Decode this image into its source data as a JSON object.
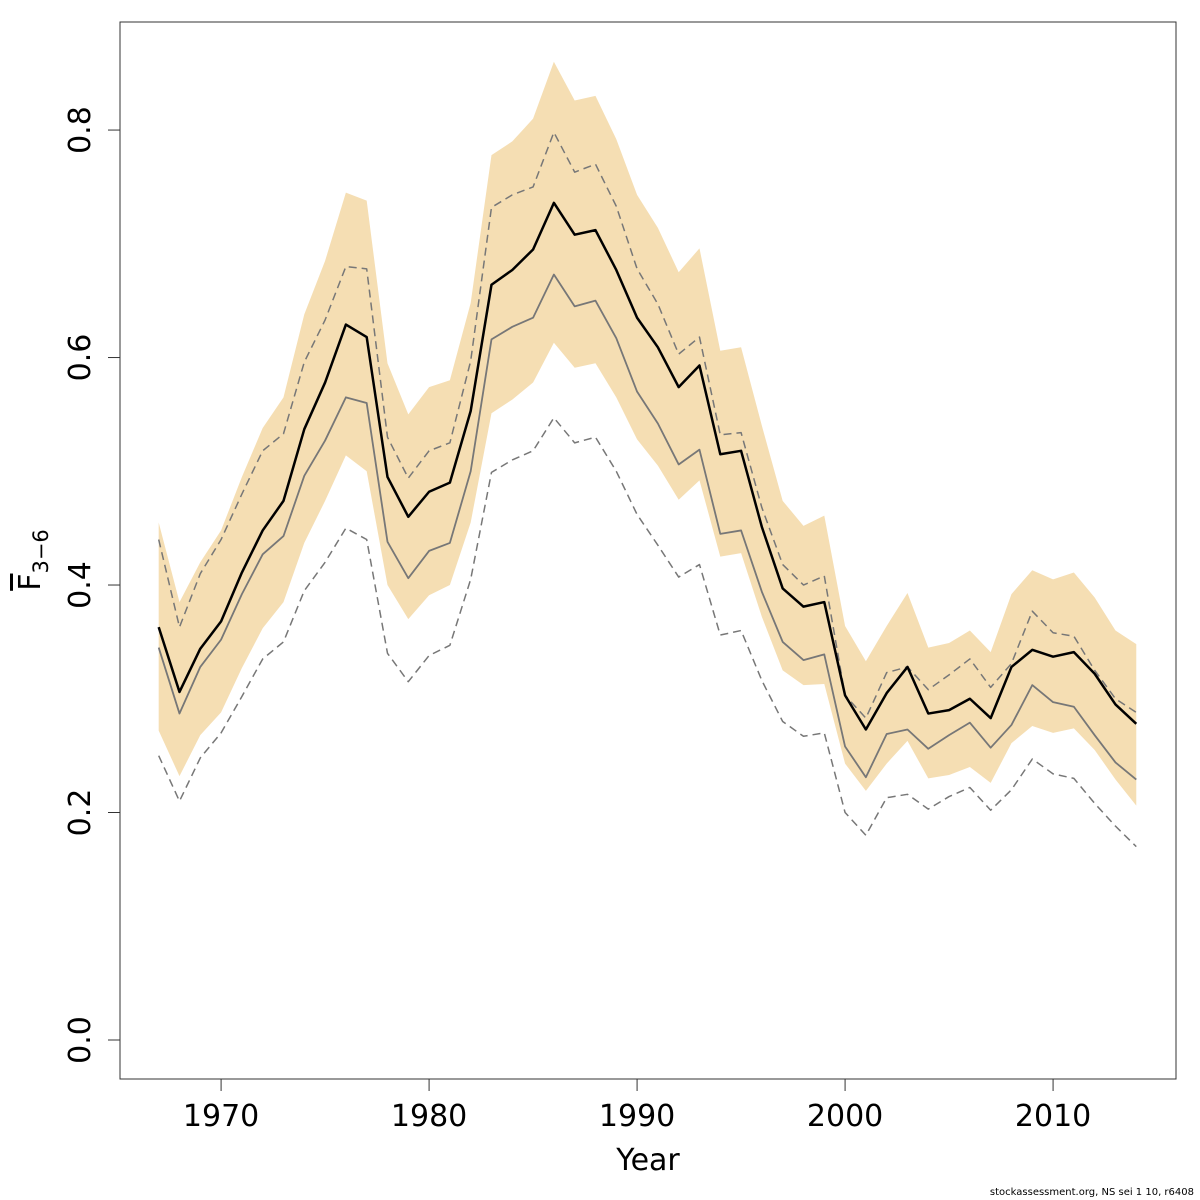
{
  "chart_data": {
    "type": "line",
    "x_label": "Year",
    "y_label": {
      "main": "F",
      "sub": "3−6"
    },
    "footer": "stockassessment.org, NS sei 1 10, r6408",
    "xlim": [
      1965.14,
      2015.91
    ],
    "ylim": [
      -0.0343,
      0.895
    ],
    "xticks": [
      1970,
      1980,
      1990,
      2000,
      2010
    ],
    "yticks": [
      {
        "value": 0,
        "label": "0.0"
      },
      0.2,
      0.4,
      0.6,
      0.8
    ],
    "x": [
      1967,
      1968,
      1969,
      1970,
      1971,
      1972,
      1973,
      1974,
      1975,
      1976,
      1977,
      1978,
      1979,
      1980,
      1981,
      1982,
      1983,
      1984,
      1985,
      1986,
      1987,
      1988,
      1989,
      1990,
      1991,
      1992,
      1993,
      1994,
      1995,
      1996,
      1997,
      1998,
      1999,
      2000,
      2001,
      2002,
      2003,
      2004,
      2005,
      2006,
      2007,
      2008,
      2009,
      2010,
      2011,
      2012,
      2013,
      2014
    ],
    "band": {
      "color": "#f5deb3",
      "upper": [
        0.455,
        0.385,
        0.42,
        0.448,
        0.495,
        0.538,
        0.565,
        0.638,
        0.685,
        0.745,
        0.738,
        0.595,
        0.55,
        0.574,
        0.58,
        0.648,
        0.778,
        0.79,
        0.81,
        0.86,
        0.826,
        0.83,
        0.792,
        0.743,
        0.714,
        0.675,
        0.696,
        0.606,
        0.609,
        0.54,
        0.474,
        0.452,
        0.461,
        0.364,
        0.333,
        0.364,
        0.393,
        0.345,
        0.349,
        0.36,
        0.341,
        0.392,
        0.413,
        0.405,
        0.411,
        0.389,
        0.36,
        0.348
      ],
      "lower": [
        0.272,
        0.232,
        0.268,
        0.288,
        0.327,
        0.362,
        0.385,
        0.437,
        0.474,
        0.514,
        0.5,
        0.4,
        0.37,
        0.391,
        0.4,
        0.455,
        0.551,
        0.563,
        0.578,
        0.613,
        0.591,
        0.595,
        0.565,
        0.528,
        0.505,
        0.475,
        0.492,
        0.425,
        0.428,
        0.372,
        0.325,
        0.312,
        0.313,
        0.243,
        0.219,
        0.243,
        0.263,
        0.23,
        0.233,
        0.24,
        0.226,
        0.261,
        0.276,
        0.27,
        0.274,
        0.255,
        0.229,
        0.206
      ]
    },
    "series": [
      {
        "color": "#777777",
        "dash": true,
        "width": 1.5,
        "values": [
          0.44,
          0.363,
          0.41,
          0.44,
          0.48,
          0.518,
          0.533,
          0.596,
          0.633,
          0.68,
          0.678,
          0.53,
          0.494,
          0.518,
          0.525,
          0.597,
          0.732,
          0.743,
          0.75,
          0.798,
          0.763,
          0.77,
          0.733,
          0.678,
          0.647,
          0.603,
          0.618,
          0.532,
          0.534,
          0.468,
          0.418,
          0.4,
          0.408,
          0.303,
          0.283,
          0.323,
          0.328,
          0.308,
          0.321,
          0.335,
          0.31,
          0.331,
          0.377,
          0.358,
          0.355,
          0.325,
          0.3,
          0.288
        ]
      },
      {
        "color": "#777777",
        "dash": true,
        "width": 1.5,
        "values": [
          0.25,
          0.21,
          0.248,
          0.27,
          0.302,
          0.335,
          0.35,
          0.395,
          0.42,
          0.45,
          0.44,
          0.34,
          0.315,
          0.338,
          0.347,
          0.405,
          0.499,
          0.51,
          0.518,
          0.547,
          0.525,
          0.53,
          0.5,
          0.462,
          0.435,
          0.407,
          0.418,
          0.356,
          0.36,
          0.316,
          0.28,
          0.267,
          0.27,
          0.2,
          0.18,
          0.213,
          0.216,
          0.203,
          0.214,
          0.222,
          0.202,
          0.22,
          0.247,
          0.234,
          0.23,
          0.208,
          0.188,
          0.17
        ]
      },
      {
        "color": "#777777",
        "dash": false,
        "width": 1.8,
        "values": [
          0.345,
          0.287,
          0.328,
          0.352,
          0.392,
          0.427,
          0.443,
          0.496,
          0.527,
          0.565,
          0.56,
          0.438,
          0.406,
          0.43,
          0.437,
          0.5,
          0.616,
          0.627,
          0.635,
          0.673,
          0.645,
          0.65,
          0.617,
          0.57,
          0.542,
          0.506,
          0.519,
          0.445,
          0.448,
          0.394,
          0.35,
          0.334,
          0.339,
          0.258,
          0.231,
          0.269,
          0.273,
          0.256,
          0.268,
          0.279,
          0.257,
          0.277,
          0.312,
          0.297,
          0.293,
          0.268,
          0.244,
          0.229
        ]
      },
      {
        "color": "#000000",
        "dash": false,
        "width": 2.5,
        "values": [
          0.363,
          0.306,
          0.344,
          0.368,
          0.411,
          0.448,
          0.474,
          0.537,
          0.578,
          0.629,
          0.618,
          0.495,
          0.46,
          0.482,
          0.49,
          0.553,
          0.664,
          0.677,
          0.695,
          0.736,
          0.708,
          0.712,
          0.677,
          0.635,
          0.609,
          0.574,
          0.593,
          0.515,
          0.518,
          0.451,
          0.397,
          0.381,
          0.385,
          0.303,
          0.273,
          0.305,
          0.328,
          0.287,
          0.29,
          0.3,
          0.283,
          0.328,
          0.343,
          0.337,
          0.341,
          0.322,
          0.295,
          0.278
        ]
      }
    ]
  }
}
